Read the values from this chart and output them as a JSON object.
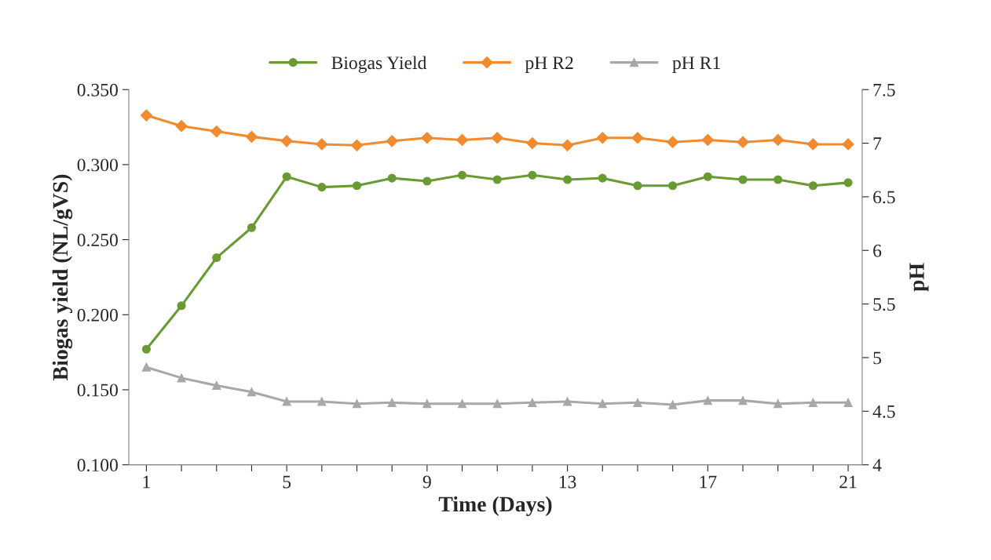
{
  "chart_data": {
    "type": "line",
    "xlabel": "Time (Days)",
    "ylabel": "Biogas yield (NL/gVS)",
    "y2label": "pH",
    "x": [
      1,
      2,
      3,
      4,
      5,
      6,
      7,
      8,
      9,
      10,
      11,
      12,
      13,
      14,
      15,
      16,
      17,
      18,
      19,
      20,
      21
    ],
    "series": [
      {
        "name": "Biogas Yield",
        "color": "#6a9a34",
        "marker": "circle",
        "values": [
          0.177,
          0.206,
          0.238,
          0.258,
          0.292,
          0.285,
          0.286,
          0.291,
          0.289,
          0.293,
          0.29,
          0.293,
          0.29,
          0.291,
          0.286,
          0.286,
          0.292,
          0.29,
          0.29,
          0.286,
          0.288
        ]
      },
      {
        "name": "pH R2",
        "color": "#f28a2e",
        "marker": "diamond",
        "axis": "y2",
        "values": [
          7.26,
          7.16,
          7.11,
          7.06,
          7.02,
          6.99,
          6.98,
          7.02,
          7.05,
          7.03,
          7.05,
          7.0,
          6.98,
          7.05,
          7.05,
          7.01,
          7.03,
          7.01,
          7.03,
          6.99,
          6.99
        ]
      },
      {
        "name": "pH R1",
        "color": "#a8a8a8",
        "marker": "triangle",
        "axis": "y2",
        "values": [
          4.91,
          4.81,
          4.74,
          4.68,
          4.59,
          4.59,
          4.57,
          4.58,
          4.57,
          4.57,
          4.57,
          4.58,
          4.59,
          4.57,
          4.58,
          4.56,
          4.6,
          4.6,
          4.57,
          4.58,
          4.58
        ]
      }
    ],
    "xlim": [
      0.5,
      21.4
    ],
    "xticks": [
      1,
      {
        "value": 2,
        "label": null
      },
      {
        "value": 3,
        "label": null
      },
      {
        "value": 4,
        "label": null
      },
      5,
      {
        "value": 6,
        "label": null
      },
      {
        "value": 7,
        "label": null
      },
      {
        "value": 8,
        "label": null
      },
      9,
      {
        "value": 10,
        "label": null
      },
      {
        "value": 11,
        "label": null
      },
      {
        "value": 12,
        "label": null
      },
      13,
      {
        "value": 14,
        "label": null
      },
      {
        "value": 15,
        "label": null
      },
      {
        "value": 16,
        "label": null
      },
      17,
      {
        "value": 18,
        "label": null
      },
      {
        "value": 19,
        "label": null
      },
      {
        "value": 20,
        "label": null
      },
      21
    ],
    "ylim": [
      0.1,
      0.35
    ],
    "yticks": [
      {
        "value": 0.1,
        "label": "0.100"
      },
      {
        "value": 0.15,
        "label": "0.150"
      },
      {
        "value": 0.2,
        "label": "0.200"
      },
      {
        "value": 0.25,
        "label": "0.250"
      },
      {
        "value": 0.3,
        "label": "0.300"
      },
      {
        "value": 0.35,
        "label": "0.350"
      }
    ],
    "y2lim": [
      4,
      7.5
    ],
    "y2ticks": [
      4,
      4.5,
      5,
      5.5,
      6,
      6.5,
      7,
      7.5
    ],
    "grid": false,
    "legend": "top",
    "line_style": "solid"
  }
}
